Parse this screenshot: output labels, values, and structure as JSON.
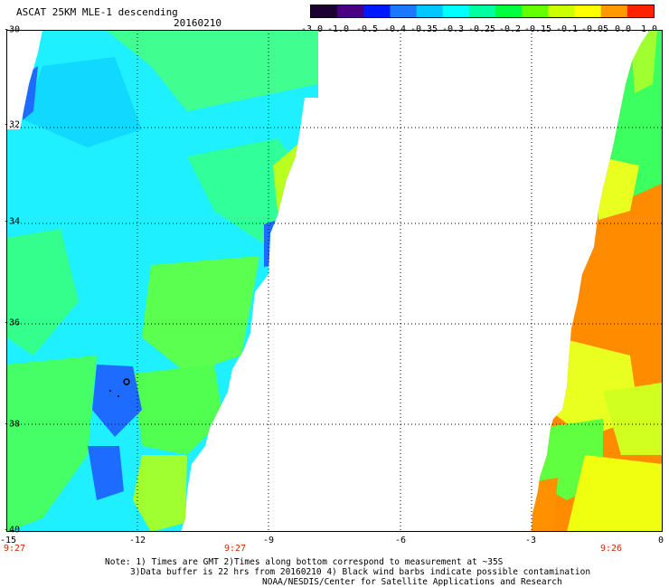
{
  "header": {
    "title": "ASCAT 25KM MLE-1 descending",
    "date": "20160210"
  },
  "colorbar": {
    "ticks": [
      "-3.0",
      "-1.0",
      "-0.5",
      "-0.4",
      "-0.35",
      "-0.3",
      "-0.25",
      "-0.2",
      "-0.15",
      "-0.1",
      "-0.05",
      "0.0",
      "1.0"
    ],
    "colors": [
      "#1a0033",
      "#4b0082",
      "#0018ff",
      "#1e78ff",
      "#00c8ff",
      "#00ffff",
      "#00ffa0",
      "#00ff40",
      "#66ff00",
      "#ccff00",
      "#ffff00",
      "#ff9900",
      "#ff2200"
    ]
  },
  "map": {
    "lat_labels": [
      "-30",
      "-32",
      "-34",
      "-36",
      "-38",
      "-40"
    ],
    "lon_labels": [
      "-15",
      "-12",
      "-9",
      "-6",
      "-3",
      "0"
    ],
    "time_labels": [
      "9:27",
      "9:27",
      "9:26"
    ],
    "colors": {
      "ocean_left": "#1ef0ff",
      "green_zone": "#3cff78",
      "blue_eddy": "#1e6cff",
      "orange_zone": "#ff8c00",
      "yellow_zone": "#e8ff20"
    }
  },
  "notes": {
    "line1": "Note: 1) Times are GMT 2)Times along bottom correspond to measurement at ~35S",
    "line2": "3)Data buffer is 22 hrs from 20160210 4) Black wind barbs indicate possible contamination",
    "line3": "NOAA/NESDIS/Center for Satellite Applications and Research"
  }
}
